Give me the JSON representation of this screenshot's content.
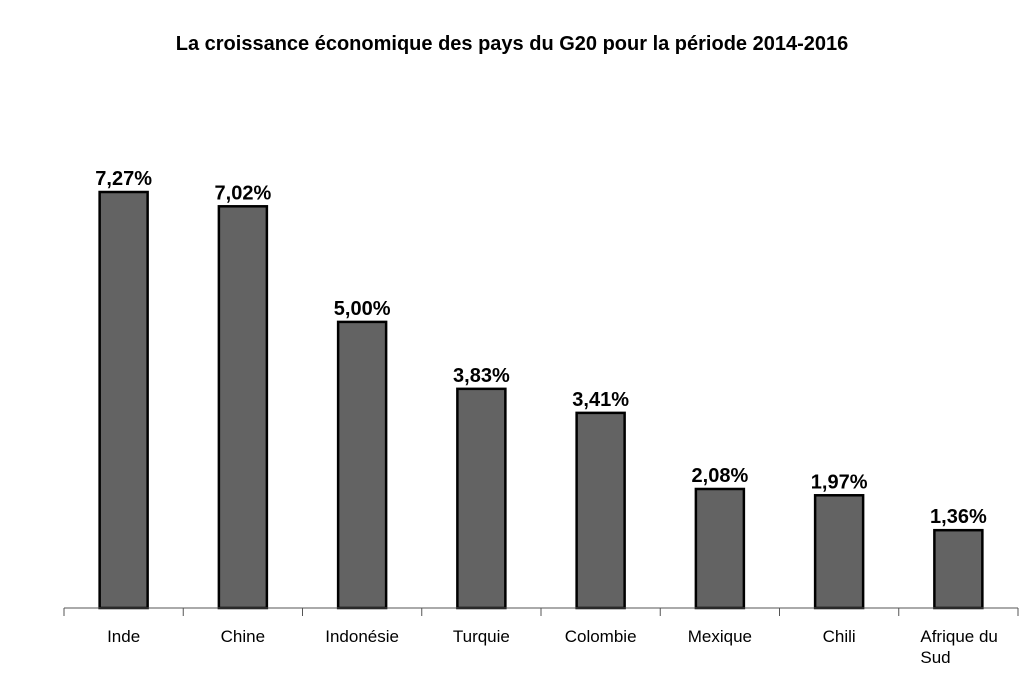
{
  "chart_data": {
    "type": "bar",
    "title": "La croissance économique des pays du G20 pour la période 2014-2016",
    "categories": [
      "Inde",
      "Chine",
      "Indonésie",
      "Turquie",
      "Colombie",
      "Mexique",
      "Chili",
      "Afrique du Sud"
    ],
    "values": [
      7.27,
      7.02,
      5.0,
      3.83,
      3.41,
      2.08,
      1.97,
      1.36
    ],
    "data_labels": [
      "7,27%",
      "7,02%",
      "5,00%",
      "3,83%",
      "3,41%",
      "2,08%",
      "1,97%",
      "1,36%"
    ],
    "category_label_lines": [
      [
        "Inde"
      ],
      [
        "Chine"
      ],
      [
        "Indonésie"
      ],
      [
        "Turquie"
      ],
      [
        "Colombie"
      ],
      [
        "Mexique"
      ],
      [
        "Chili"
      ],
      [
        "Afrique du",
        "Sud"
      ]
    ],
    "xlabel": "",
    "ylabel": "",
    "ylim": [
      0,
      7.27
    ],
    "grid": false,
    "legend": "none",
    "colors": {
      "bar_fill": "#636363",
      "bar_stroke": "#000000"
    }
  }
}
